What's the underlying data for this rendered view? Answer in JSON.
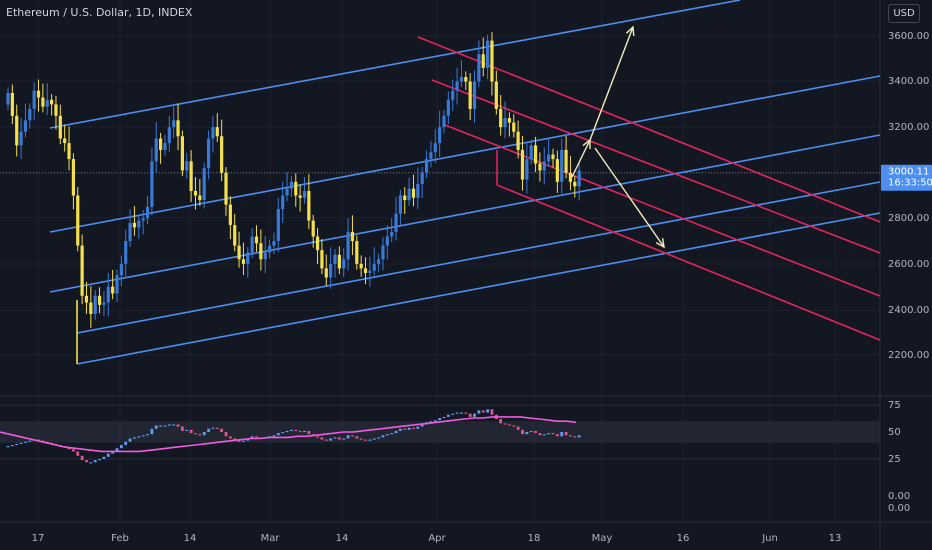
{
  "header": {
    "title": "Ethereum / U.S. Dollar, 1D, INDEX",
    "currency_label": "USD"
  },
  "price_tag": {
    "price": "3000.11",
    "countdown": "16:33:50"
  },
  "colors": {
    "background": "#131722",
    "up_candle": "#3a79d6",
    "down_candle": "#f4e04d",
    "channel_blue": "#4d8ff0",
    "channel_red": "#e4245f",
    "arrow": "#f2eebb",
    "rsi_line": "#f25ae0",
    "axis_text": "#b2b5be",
    "grid": "#1c2030"
  },
  "chart_data": [
    {
      "type": "candlestick",
      "panel": "price",
      "x_ticks": [
        "17",
        "Feb",
        "14",
        "Mar",
        "14",
        "Apr",
        "18",
        "May",
        "16",
        "Jun",
        "13"
      ],
      "y_ticks": [
        "3600.00",
        "3400.00",
        "3200.00",
        "3000.00",
        "2800.00",
        "2600.00",
        "2400.00",
        "2200.00"
      ],
      "ylim": [
        2080,
        3720
      ],
      "last_price": 3000.11,
      "series": [
        {
          "colors_by_direction": true,
          "close": [
            3350,
            3250,
            3120,
            3180,
            3230,
            3280,
            3360,
            3330,
            3290,
            3320,
            3300,
            3250,
            3150,
            3130,
            3060,
            2900,
            2680,
            2460,
            2430,
            2380,
            2460,
            2420,
            2430,
            2500,
            2470,
            2550,
            2600,
            2700,
            2780,
            2760,
            2790,
            2800,
            2850,
            3050,
            3150,
            3100,
            3130,
            3200,
            3230,
            3160,
            3010,
            3050,
            2920,
            2900,
            2880,
            3020,
            3150,
            3200,
            3160,
            3000,
            2860,
            2770,
            2680,
            2620,
            2600,
            2650,
            2720,
            2690,
            2620,
            2650,
            2680,
            2700,
            2840,
            2900,
            2930,
            2960,
            2900,
            2890,
            2920,
            2790,
            2720,
            2660,
            2580,
            2540,
            2600,
            2640,
            2580,
            2620,
            2740,
            2700,
            2600,
            2580,
            2560,
            2570,
            2600,
            2620,
            2680,
            2720,
            2740,
            2820,
            2900,
            2880,
            2930,
            2890,
            2950,
            3000,
            3060,
            3090,
            3130,
            3200,
            3250,
            3320,
            3360,
            3400,
            3420,
            3400,
            3280,
            3400,
            3520,
            3460,
            3580,
            3400,
            3280,
            3200,
            3240,
            3220,
            3180,
            3100,
            2970,
            3060,
            3120,
            3040,
            3010,
            3050,
            3080,
            3060,
            2960,
            3100,
            3000,
            2960,
            2940,
            3010
          ]
        }
      ]
    },
    {
      "type": "line",
      "panel": "rsi",
      "y_ticks": [
        "75",
        "50",
        "25",
        "0.00",
        "0.00"
      ],
      "ylim": [
        0,
        75
      ],
      "band": [
        40,
        60
      ],
      "series": [
        {
          "name": "RSI",
          "values": [
            37,
            38,
            39,
            40,
            41,
            42,
            43,
            42,
            41,
            40,
            39,
            38,
            37,
            36,
            34,
            32,
            28,
            24,
            22,
            22,
            24,
            25,
            27,
            30,
            32,
            35,
            38,
            41,
            44,
            45,
            46,
            47,
            48,
            53,
            56,
            56,
            56,
            57,
            57,
            55,
            51,
            52,
            49,
            48,
            47,
            50,
            53,
            54,
            53,
            50,
            46,
            44,
            42,
            41,
            42,
            44,
            46,
            45,
            44,
            45,
            46,
            47,
            49,
            50,
            51,
            52,
            51,
            50,
            51,
            48,
            46,
            45,
            43,
            42,
            44,
            45,
            43,
            44,
            47,
            46,
            44,
            43,
            42,
            43,
            44,
            45,
            47,
            48,
            49,
            51,
            53,
            52,
            54,
            53,
            55,
            57,
            59,
            60,
            61,
            63,
            64,
            66,
            67,
            68,
            68,
            67,
            64,
            67,
            70,
            68,
            71,
            66,
            62,
            58,
            57,
            56,
            55,
            52,
            48,
            50,
            51,
            49,
            47,
            48,
            49,
            48,
            46,
            50,
            47,
            46,
            45,
            47
          ]
        },
        {
          "name": "RSI MA",
          "values": [
            50,
            48,
            46,
            44,
            42,
            40,
            38,
            36,
            35,
            34,
            33,
            32,
            32,
            32,
            32,
            32,
            33,
            34,
            35,
            36,
            37,
            38,
            39,
            40,
            41,
            42,
            43,
            44,
            44,
            45,
            45,
            45,
            46,
            46,
            47,
            48,
            49,
            50,
            50,
            51,
            52,
            53,
            54,
            55,
            56,
            57,
            58,
            59,
            60,
            61,
            62,
            63,
            63,
            64,
            64,
            64,
            64,
            63,
            62,
            61,
            60,
            60,
            59
          ]
        }
      ]
    }
  ]
}
